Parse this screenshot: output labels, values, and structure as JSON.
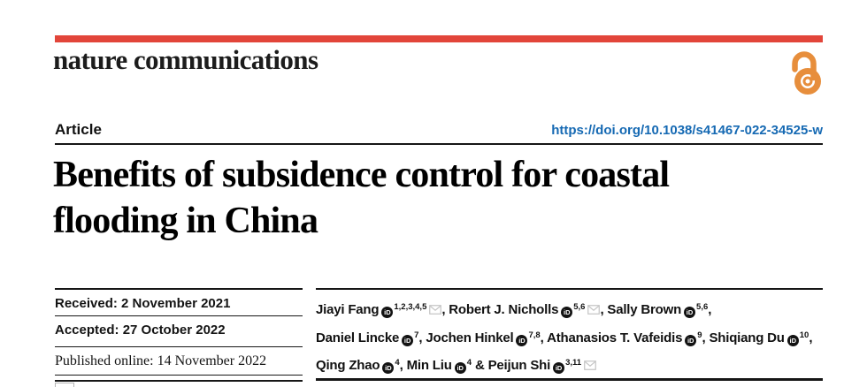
{
  "brand": {
    "journal_name": "nature communications",
    "accent_red": "#E2453A",
    "open_access_orange": "#E78E3C",
    "link_blue": "#1569B3",
    "open_access_icon": "open-access-icon"
  },
  "header": {
    "article_type": "Article",
    "doi_url": "https://doi.org/10.1038/s41467-022-34525-w"
  },
  "title": {
    "line1": "Benefits of subsidence control for coastal",
    "line2": "flooding in China"
  },
  "history": [
    {
      "label": "Received:",
      "value": "2 November 2021"
    },
    {
      "label": "Accepted:",
      "value": "27 October 2022"
    },
    {
      "label": "Published online:",
      "value": "14 November 2022"
    }
  ],
  "authors": {
    "orcid_icon_text": "iD",
    "lines": [
      [
        {
          "name": "Jiayi Fang",
          "sup": "1,2,3,4,5",
          "orcid": true,
          "envelope": true,
          "trail": ", "
        },
        {
          "name": "Robert J. Nicholls",
          "sup": "5,6",
          "orcid": true,
          "envelope": true,
          "trail": ", "
        },
        {
          "name": "Sally Brown",
          "sup": "5,6",
          "orcid": true,
          "envelope": false,
          "trail": ","
        }
      ],
      [
        {
          "name": "Daniel Lincke",
          "sup": "7",
          "orcid": true,
          "envelope": false,
          "trail": ", "
        },
        {
          "name": "Jochen Hinkel",
          "sup": "7,8",
          "orcid": true,
          "envelope": false,
          "trail": ", "
        },
        {
          "name": "Athanasios T. Vafeidis",
          "sup": "9",
          "orcid": true,
          "envelope": false,
          "trail": ", "
        },
        {
          "name": "Shiqiang Du",
          "sup": "10",
          "orcid": true,
          "envelope": false,
          "trail": ","
        }
      ],
      [
        {
          "name": "Qing Zhao",
          "sup": "4",
          "orcid": true,
          "envelope": false,
          "trail": ", "
        },
        {
          "name": "Min Liu",
          "sup": "4",
          "orcid": true,
          "envelope": false,
          "trail": " & "
        },
        {
          "name": "Peijun Shi",
          "sup": "3,11",
          "orcid": true,
          "envelope": true,
          "trail": ""
        }
      ]
    ]
  }
}
